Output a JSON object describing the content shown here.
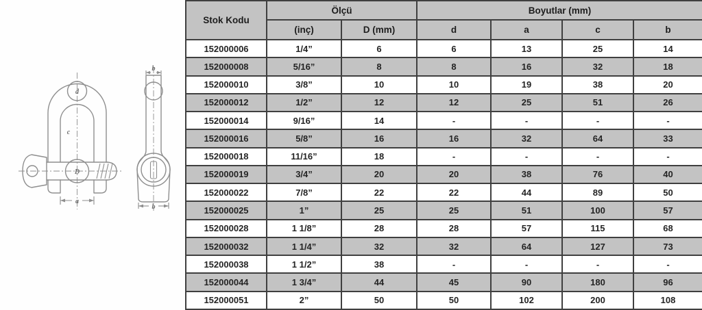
{
  "colors": {
    "header_bg": "#c3c3c3",
    "row_alt": "#c3c3c3",
    "border": "#3f3f3f",
    "line": "#8e8e8e"
  },
  "drawing": {
    "front": {
      "bow_diameter_label": "d",
      "inner_length_label": "c",
      "pin_diameter_label": "D",
      "inner_width_label": "a"
    },
    "side": {
      "top_width_label": "b",
      "bottom_width_label": "b"
    }
  },
  "table": {
    "header": {
      "stok_kodu": "Stok Kodu",
      "olcu": "Ölçü",
      "boyutlar": "Boyutlar (mm)",
      "inch": "(inç)",
      "d_mm": "D (mm)",
      "d": "d",
      "a": "a",
      "c": "c",
      "b": "b"
    },
    "rows": [
      {
        "stok": "152000006",
        "inch": "1/4”",
        "d_mm": "6",
        "d": "6",
        "a": "13",
        "c": "25",
        "b": "14"
      },
      {
        "stok": "152000008",
        "inch": "5/16”",
        "d_mm": "8",
        "d": "8",
        "a": "16",
        "c": "32",
        "b": "18"
      },
      {
        "stok": "152000010",
        "inch": "3/8”",
        "d_mm": "10",
        "d": "10",
        "a": "19",
        "c": "38",
        "b": "20"
      },
      {
        "stok": "152000012",
        "inch": "1/2”",
        "d_mm": "12",
        "d": "12",
        "a": "25",
        "c": "51",
        "b": "26"
      },
      {
        "stok": "152000014",
        "inch": "9/16”",
        "d_mm": "14",
        "d": "-",
        "a": "-",
        "c": "-",
        "b": "-"
      },
      {
        "stok": "152000016",
        "inch": "5/8”",
        "d_mm": "16",
        "d": "16",
        "a": "32",
        "c": "64",
        "b": "33"
      },
      {
        "stok": "152000018",
        "inch": "11/16”",
        "d_mm": "18",
        "d": "-",
        "a": "-",
        "c": "-",
        "b": "-"
      },
      {
        "stok": "152000019",
        "inch": "3/4”",
        "d_mm": "20",
        "d": "20",
        "a": "38",
        "c": "76",
        "b": "40"
      },
      {
        "stok": "152000022",
        "inch": "7/8”",
        "d_mm": "22",
        "d": "22",
        "a": "44",
        "c": "89",
        "b": "50"
      },
      {
        "stok": "152000025",
        "inch": "1”",
        "d_mm": "25",
        "d": "25",
        "a": "51",
        "c": "100",
        "b": "57"
      },
      {
        "stok": "152000028",
        "inch": "1 1/8”",
        "d_mm": "28",
        "d": "28",
        "a": "57",
        "c": "115",
        "b": "68"
      },
      {
        "stok": "152000032",
        "inch": "1 1/4”",
        "d_mm": "32",
        "d": "32",
        "a": "64",
        "c": "127",
        "b": "73"
      },
      {
        "stok": "152000038",
        "inch": "1 1/2”",
        "d_mm": "38",
        "d": "-",
        "a": "-",
        "c": "-",
        "b": "-"
      },
      {
        "stok": "152000044",
        "inch": "1 3/4”",
        "d_mm": "44",
        "d": "45",
        "a": "90",
        "c": "180",
        "b": "96"
      },
      {
        "stok": "152000051",
        "inch": "2”",
        "d_mm": "50",
        "d": "50",
        "a": "102",
        "c": "200",
        "b": "108"
      }
    ]
  }
}
